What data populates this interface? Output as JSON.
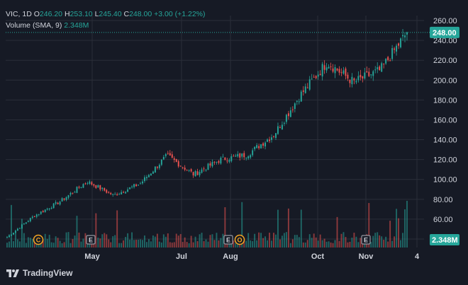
{
  "symbol": {
    "ticker": "VIC",
    "interval": "1D",
    "o_label": "O",
    "open": "246.20",
    "h_label": "H",
    "high": "253.10",
    "l_label": "L",
    "low": "245.40",
    "c_label": "C",
    "close": "248.00",
    "change": "+3.00 (+1.22%)"
  },
  "volume_indicator": {
    "label": "Volume (SMA, 9)",
    "value": "2.348M"
  },
  "branding": {
    "logo_text": "TradingView"
  },
  "colors": {
    "up": "#26a69a",
    "down": "#ef5350",
    "background": "#161a25",
    "grid": "#2a2e39",
    "marker": "#f5a623"
  },
  "event_markers": [
    {
      "symbol": "C",
      "x_date": "2024-04-08",
      "kind": "circle"
    },
    {
      "symbol": "E",
      "x_date": "2024-04-24",
      "kind": "square"
    },
    {
      "symbol": "E",
      "x_date": "2024-07-25",
      "kind": "square"
    },
    {
      "symbol": "O",
      "x_date": "2024-07-29",
      "kind": "circle"
    },
    {
      "symbol": "E",
      "x_date": "2024-10-25",
      "kind": "square"
    }
  ],
  "chart_data": {
    "type": "candlestick",
    "title": "",
    "y_axis": {
      "ticks": [
        40,
        60,
        80,
        100,
        120,
        140,
        160,
        180,
        200,
        220,
        240,
        260
      ],
      "range": [
        40,
        265
      ]
    },
    "x_axis": {
      "tick_labels": [
        "May",
        "Jul",
        "Aug",
        "Oct",
        "Nov",
        "4"
      ]
    },
    "last_price": "248.00",
    "last_volume": "2.348M",
    "price_path": [
      {
        "date": "Mar",
        "close": 42
      },
      {
        "date": "Apr",
        "close": 63
      },
      {
        "date": "May",
        "close": 78
      },
      {
        "date": "Jun",
        "close": 98
      },
      {
        "date": "Jun end",
        "close": 84
      },
      {
        "date": "Jul",
        "close": 96
      },
      {
        "date": "Jul mid",
        "close": 124
      },
      {
        "date": "Aug",
        "close": 105
      },
      {
        "date": "Aug mid",
        "close": 120
      },
      {
        "date": "Sep",
        "close": 125
      },
      {
        "date": "Sep end",
        "close": 145
      },
      {
        "date": "Oct",
        "close": 185
      },
      {
        "date": "Oct mid",
        "close": 218
      },
      {
        "date": "Oct end",
        "close": 198
      },
      {
        "date": "Nov",
        "close": 210
      },
      {
        "date": "Nov end",
        "close": 248
      }
    ]
  }
}
